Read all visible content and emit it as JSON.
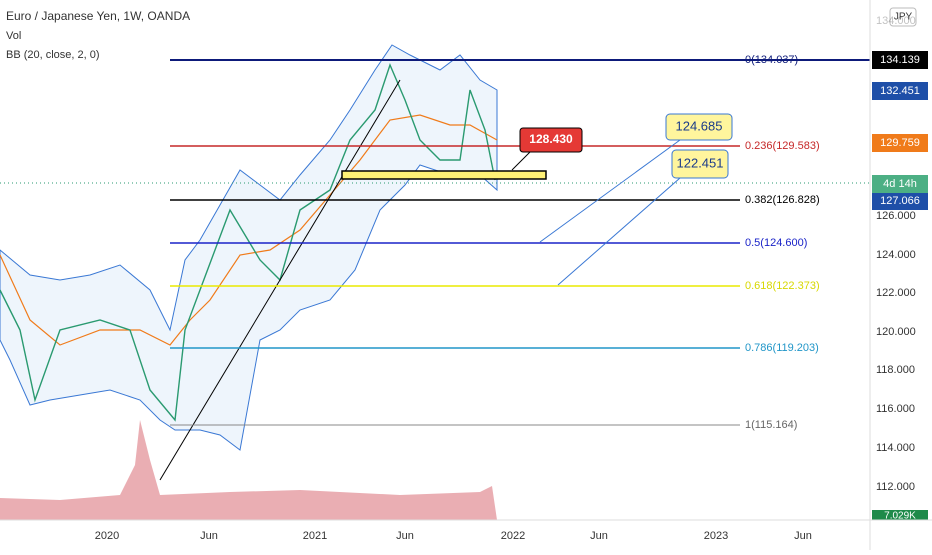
{
  "header": {
    "legend": [
      "Euro / Japanese Yen, 1W, OANDA",
      "Vol",
      "BB (20, close, 2, 0)"
    ],
    "currency_button": "JPY"
  },
  "price_axis": {
    "labels": [
      "134.000",
      "126.000",
      "124.000",
      "122.000",
      "120.000",
      "118.000",
      "116.000",
      "114.000",
      "112.000"
    ]
  },
  "badges": [
    "134.139",
    "132.451",
    "129.759",
    "4d 14h",
    "127.066",
    "7.029K"
  ],
  "fib_levels": [
    "0(134.037)",
    "0.236(129.583)",
    "0.382(126.828)",
    "0.5(124.600)",
    "0.618(122.373)",
    "0.786(119.203)",
    "1(115.164)"
  ],
  "callouts": [
    "128.430",
    "124.685",
    "122.451"
  ],
  "time_axis": {
    "labels": [
      "2020",
      "Jun",
      "2021",
      "Jun",
      "2022",
      "Jun",
      "2023",
      "Jun"
    ]
  }
}
